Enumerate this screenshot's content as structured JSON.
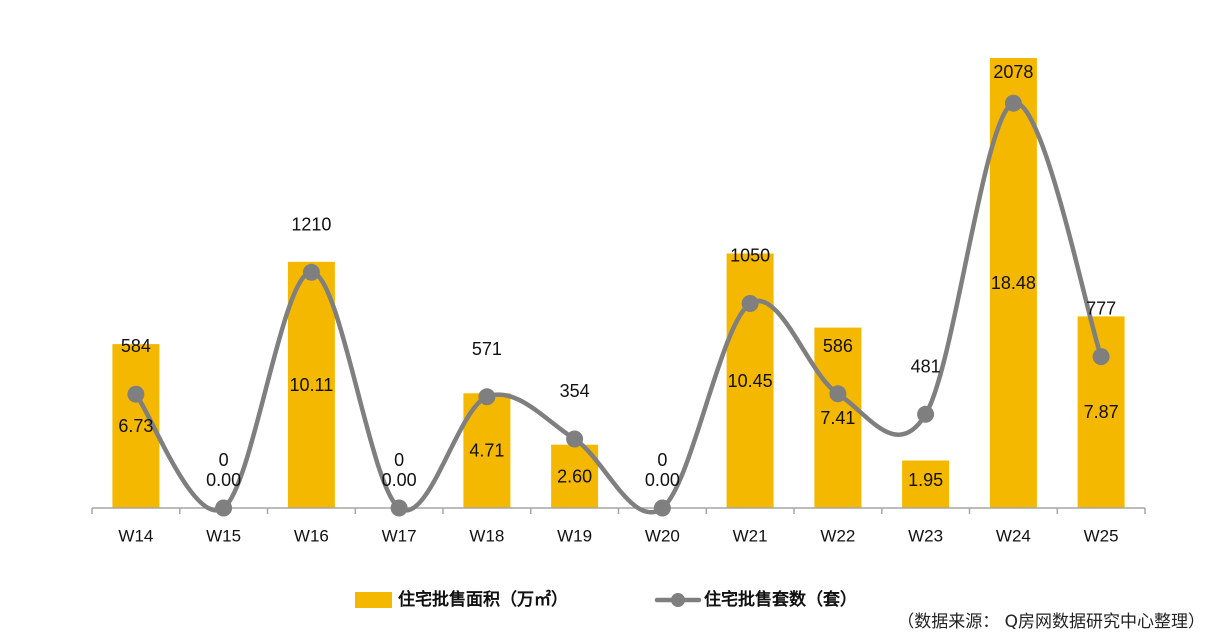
{
  "chart_data": {
    "type": "bar",
    "categories": [
      "W14",
      "W15",
      "W16",
      "W17",
      "W18",
      "W19",
      "W20",
      "W21",
      "W22",
      "W23",
      "W24",
      "W25"
    ],
    "series": [
      {
        "name": "住宅批售面积（万㎡）",
        "type": "bar",
        "axis": "primary",
        "color": "#F5B800",
        "values": [
          6.73,
          0,
          10.11,
          0,
          4.71,
          2.6,
          0,
          10.45,
          7.41,
          1.95,
          18.48,
          7.87
        ],
        "data_labels": [
          "6.73",
          "0.00",
          "10.11",
          "0.00",
          "4.71",
          "2.60",
          "0.00",
          "10.45",
          "7.41",
          "1.95",
          "18.48",
          "7.87"
        ]
      },
      {
        "name": "住宅批售套数（套）",
        "type": "line",
        "smooth": true,
        "marker": "circle",
        "axis": "secondary",
        "color": "#7F7F7F",
        "values": [
          584,
          0,
          1210,
          0,
          571,
          354,
          0,
          1050,
          586,
          481,
          2078,
          777
        ]
      }
    ],
    "ylim": [
      0,
      20
    ],
    "y2lim": [
      0,
      2500
    ],
    "y_axis_visible": false,
    "grid": false,
    "legend": "bottom",
    "axis_color": "#A6A6A6"
  },
  "source_note": "（数据来源： Q房网数据研究中心整理）"
}
